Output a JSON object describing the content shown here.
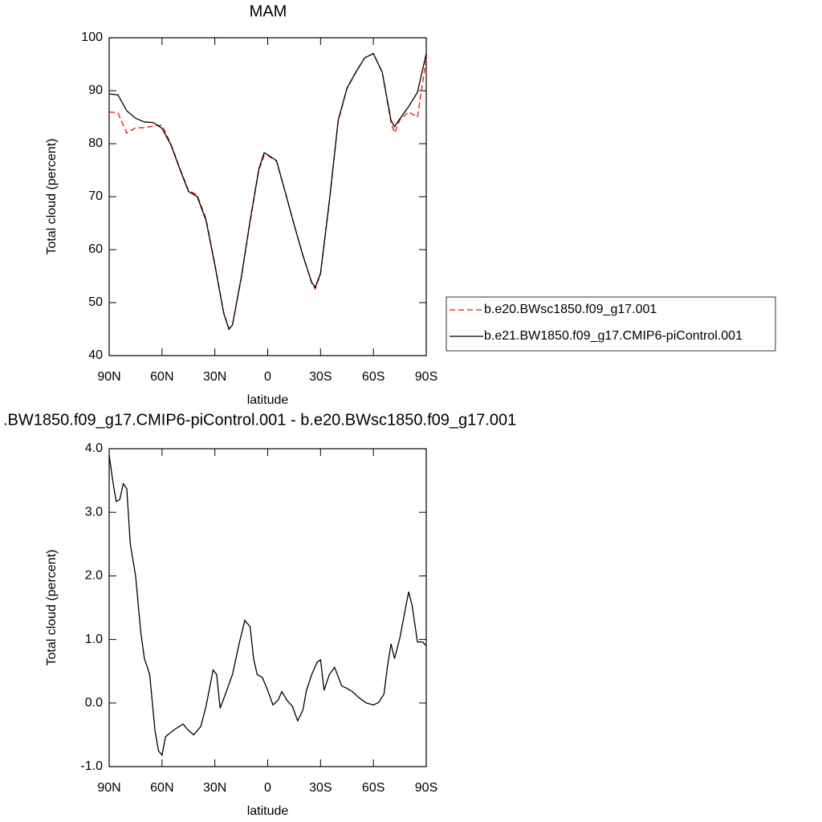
{
  "chart_data": [
    {
      "type": "line",
      "title": "MAM",
      "xlabel": "latitude",
      "ylabel": "Total cloud (percent)",
      "x": [
        90,
        85,
        80,
        75,
        70,
        65,
        60,
        55,
        50,
        45,
        40,
        35,
        30,
        25,
        22,
        20,
        15,
        10,
        5,
        2,
        0,
        -5,
        -10,
        -15,
        -20,
        -25,
        -27,
        -30,
        -35,
        -40,
        -45,
        -50,
        -55,
        -60,
        -65,
        -70,
        -72,
        -75,
        -80,
        -85,
        -90
      ],
      "series": [
        {
          "name": "b.e20.BWsc1850.f09_g17.001",
          "color": "#ff0000",
          "line_style": "dashed",
          "values": [
            86,
            85.8,
            82,
            83,
            83,
            83.3,
            83.5,
            80,
            75.5,
            71.2,
            70.3,
            65.8,
            57.3,
            48.2,
            45,
            45.8,
            54.6,
            65.2,
            75,
            77.8,
            77.8,
            76.7,
            70.8,
            64.7,
            58.9,
            53.6,
            52.6,
            55.4,
            69,
            84.2,
            90.4,
            93.4,
            96.2,
            97,
            93.5,
            84,
            82,
            84.5,
            86,
            85,
            96
          ]
        },
        {
          "name": "b.e21.BW1850.f09_g17.CMIP6-piControl.001",
          "color": "#000000",
          "line_style": "solid",
          "values": [
            89.4,
            89.2,
            86.2,
            84.8,
            84.1,
            84,
            82.9,
            79.8,
            75.3,
            71,
            70,
            65.5,
            57.1,
            48,
            45,
            45.8,
            54.8,
            65.5,
            75.3,
            78.3,
            77.9,
            76.8,
            70.8,
            64.7,
            58.9,
            53.8,
            52.9,
            55.6,
            69.2,
            84.4,
            90.5,
            93.5,
            96.2,
            97,
            93.5,
            84.4,
            83.2,
            84.7,
            87,
            89.7,
            97
          ]
        }
      ],
      "xlim": [
        90,
        -90
      ],
      "xticks": [
        {
          "value": 90,
          "label": "90N"
        },
        {
          "value": 60,
          "label": "60N"
        },
        {
          "value": 30,
          "label": "30N"
        },
        0,
        {
          "value": -30,
          "label": "30S"
        },
        {
          "value": -60,
          "label": "60S"
        },
        {
          "value": -90,
          "label": "90S"
        }
      ],
      "ylim": [
        40,
        100
      ],
      "yticks": [
        40,
        50,
        60,
        70,
        80,
        90,
        100
      ]
    },
    {
      "type": "line",
      "title": ".BW1850.f09_g17.CMIP6-piControl.001 - b.e20.BWsc1850.f09_g17.001",
      "xlabel": "latitude",
      "ylabel": "Total cloud (percent)",
      "x": [
        90,
        88,
        86,
        84,
        82,
        80,
        78,
        75,
        72,
        70,
        67,
        64,
        62,
        60,
        58,
        55,
        52,
        48,
        45,
        42,
        38,
        35,
        31,
        29,
        27,
        24,
        20,
        16,
        13,
        10,
        8,
        6,
        3,
        0,
        -3,
        -6,
        -8,
        -11,
        -14,
        -17,
        -20,
        -22,
        -25,
        -28,
        -30,
        -32,
        -35,
        -38,
        -42,
        -45,
        -48,
        -52,
        -56,
        -60,
        -63,
        -66,
        -68,
        -70,
        -72,
        -75,
        -78,
        -80,
        -82,
        -85,
        -88,
        -90
      ],
      "series": [
        {
          "color": "#000000",
          "line_style": "solid",
          "values": [
            3.9,
            3.5,
            3.17,
            3.2,
            3.45,
            3.37,
            2.5,
            2.0,
            1.1,
            0.7,
            0.45,
            -0.43,
            -0.75,
            -0.82,
            -0.53,
            -0.46,
            -0.4,
            -0.33,
            -0.43,
            -0.5,
            -0.37,
            -0.05,
            0.52,
            0.45,
            -0.08,
            0.14,
            0.45,
            0.96,
            1.3,
            1.2,
            0.7,
            0.45,
            0.4,
            0.2,
            -0.03,
            0.05,
            0.18,
            0.04,
            -0.05,
            -0.28,
            -0.11,
            0.2,
            0.45,
            0.64,
            0.68,
            0.2,
            0.45,
            0.56,
            0.27,
            0.23,
            0.18,
            0.08,
            0,
            -0.03,
            0.01,
            0.14,
            0.58,
            0.93,
            0.7,
            1.02,
            1.46,
            1.75,
            1.53,
            0.96,
            0.96,
            0.9
          ]
        }
      ],
      "xlim": [
        90,
        -90
      ],
      "xticks": [
        {
          "value": 90,
          "label": "90N"
        },
        {
          "value": 60,
          "label": "60N"
        },
        {
          "value": 30,
          "label": "30N"
        },
        0,
        {
          "value": -30,
          "label": "30S"
        },
        {
          "value": -60,
          "label": "60S"
        },
        {
          "value": -90,
          "label": "90S"
        }
      ],
      "ylim": [
        -1,
        4
      ],
      "yticks": [
        {
          "value": -1,
          "label": "-1.0"
        },
        {
          "value": 0,
          "label": "0.0"
        },
        {
          "value": 1,
          "label": "1.0"
        },
        {
          "value": 2,
          "label": "2.0"
        },
        {
          "value": 3,
          "label": "3.0"
        },
        {
          "value": 4,
          "label": "4.0"
        }
      ]
    }
  ]
}
